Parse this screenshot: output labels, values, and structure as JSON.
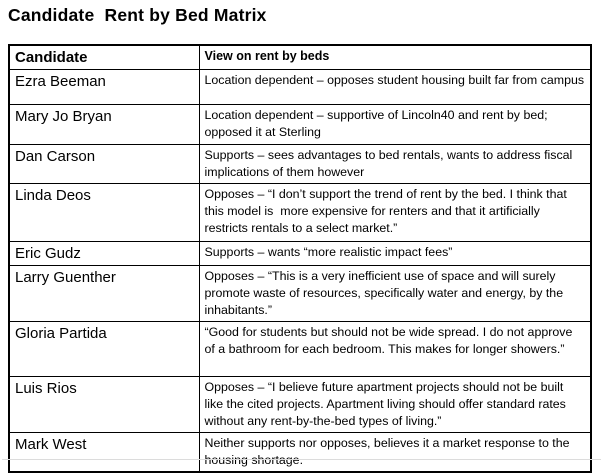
{
  "page": {
    "title": "Candidate  Rent by Bed Matrix"
  },
  "table": {
    "headers": {
      "candidate": "Candidate",
      "view": "View on rent by beds"
    },
    "rows": [
      {
        "candidate": "Ezra Beeman",
        "view": "Location dependent – opposes student housing built far from campus"
      },
      {
        "candidate": "Mary Jo Bryan",
        "view": "Location dependent – supportive of Lincoln40 and rent by bed; opposed it at Sterling"
      },
      {
        "candidate": "Dan Carson",
        "view": "Supports – sees advantages to bed rentals, wants to address fiscal implications of them however"
      },
      {
        "candidate": "Linda Deos",
        "view": "Opposes – “I don’t support the trend of rent by the bed. I think that this model is  more expensive for renters and that it artificially  restricts rentals to a select market.”"
      },
      {
        "candidate": "Eric Gudz",
        "view": "Supports – wants “more realistic impact fees”"
      },
      {
        "candidate": "Larry Guenther",
        "view": "Opposes – “This is a very inefficient use of space and will surely promote waste of resources, specifically water and energy, by the inhabitants.”"
      },
      {
        "candidate": "Gloria Partida",
        "view": "“Good for students but should not be wide spread. I do not approve of a bathroom for each bedroom. This makes for longer showers.”"
      },
      {
        "candidate": "Luis Rios",
        "view": "Opposes – “I believe future apartment projects should not be built like the cited projects. Apartment living should offer standard rates without any rent-by-the-bed types of living.”"
      },
      {
        "candidate": "Mark West",
        "view": "Neither supports nor opposes, believes it a market response to the housing shortage."
      }
    ]
  },
  "colors": {
    "text": "#000000",
    "border": "#000000",
    "background": "#ffffff",
    "frame_shadow": "#dcdcdc"
  }
}
